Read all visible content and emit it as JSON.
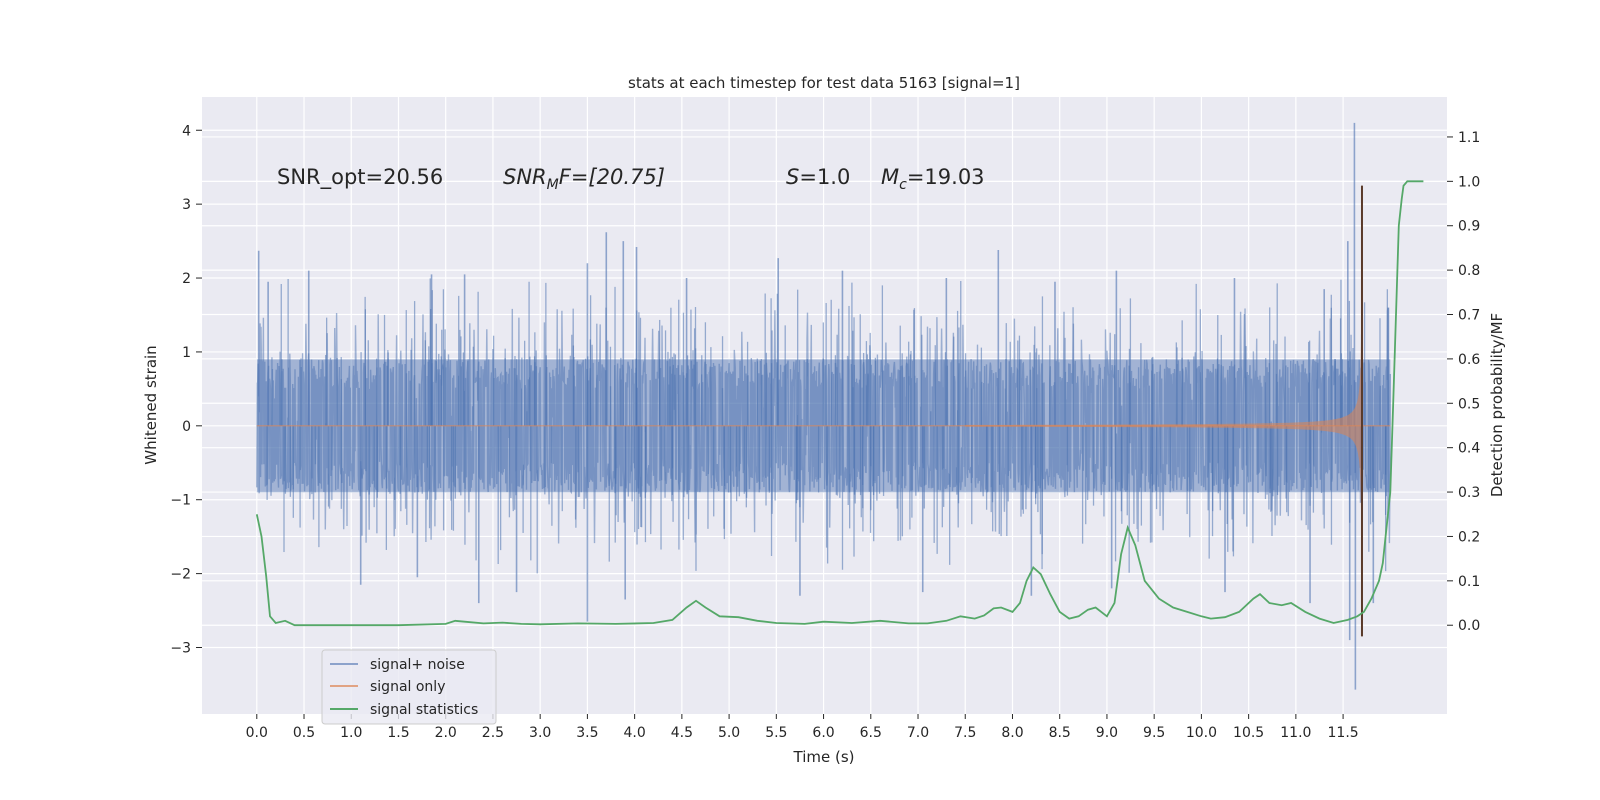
{
  "chart_data": {
    "type": "line",
    "title": "stats at each timestep for test data 5163 [signal=1]",
    "xlabel": "Time (s)",
    "ylabel": "Whitened strain",
    "y2label": "Detection probability/MF",
    "xlim": [
      -0.58,
      12.6
    ],
    "ylim": [
      -3.9,
      4.45
    ],
    "y2lim": [
      -0.2,
      1.19
    ],
    "x_ticks": [
      0.0,
      0.5,
      1.0,
      1.5,
      2.0,
      2.5,
      3.0,
      3.5,
      4.0,
      4.5,
      5.0,
      5.5,
      6.0,
      6.5,
      7.0,
      7.5,
      8.0,
      8.5,
      9.0,
      9.5,
      10.0,
      10.5,
      11.0,
      11.5
    ],
    "x_tick_labels": [
      "0.0",
      "0.5",
      "1.0",
      "1.5",
      "2.0",
      "2.5",
      "3.0",
      "3.5",
      "4.0",
      "4.5",
      "5.0",
      "5.5",
      "6.0",
      "6.5",
      "7.0",
      "7.5",
      "8.0",
      "8.5",
      "9.0",
      "9.5",
      "10.0",
      "10.5",
      "11.0",
      "11.5"
    ],
    "y_ticks": [
      -3,
      -2,
      -1,
      0,
      1,
      2,
      3,
      4
    ],
    "y_tick_labels": [
      "−3",
      "−2",
      "−1",
      "0",
      "1",
      "2",
      "3",
      "4"
    ],
    "y2_ticks": [
      0.0,
      0.1,
      0.2,
      0.3,
      0.4,
      0.5,
      0.6,
      0.7,
      0.8,
      0.9,
      1.0,
      1.1
    ],
    "y2_tick_labels": [
      "0.0",
      "0.1",
      "0.2",
      "0.3",
      "0.4",
      "0.5",
      "0.6",
      "0.7",
      "0.8",
      "0.9",
      "1.0",
      "1.1"
    ],
    "grid": true,
    "legend_position": "lower-left",
    "annotations": {
      "snr_opt": "SNR_opt=20.56",
      "snr_mf_name": "SNR",
      "snr_mf_sub": "M",
      "snr_mf_rest": "F=[20.75]",
      "s_name": "S",
      "s_rest": "=1.0",
      "mc_name": "M",
      "mc_sub": "c",
      "mc_rest": "=19.03"
    },
    "series": [
      {
        "name": "signal+ noise",
        "color": "#4c72b0",
        "opacity": 0.5,
        "axis": "left",
        "t_start": 0.0,
        "t_end": 12.0,
        "band_low": -0.9,
        "band_high": 0.9,
        "peaks": [
          [
            0.02,
            2.37
          ],
          [
            0.12,
            1.95
          ],
          [
            0.55,
            2.1
          ],
          [
            1.85,
            2.05
          ],
          [
            2.2,
            2.05
          ],
          [
            3.5,
            2.2
          ],
          [
            3.7,
            2.62
          ],
          [
            3.88,
            2.5
          ],
          [
            4.02,
            2.42
          ],
          [
            4.55,
            2.0
          ],
          [
            5.52,
            2.27
          ],
          [
            6.2,
            2.1
          ],
          [
            7.3,
            2.0
          ],
          [
            7.85,
            2.38
          ],
          [
            8.45,
            1.95
          ],
          [
            9.1,
            2.1
          ],
          [
            10.35,
            2.0
          ],
          [
            11.3,
            1.85
          ],
          [
            11.62,
            4.1
          ],
          [
            11.55,
            2.5
          ],
          [
            11.98,
            1.6
          ]
        ],
        "troughs": [
          [
            1.1,
            -2.15
          ],
          [
            1.7,
            -2.05
          ],
          [
            2.35,
            -2.4
          ],
          [
            2.75,
            -2.25
          ],
          [
            3.5,
            -2.65
          ],
          [
            3.9,
            -2.35
          ],
          [
            5.75,
            -2.3
          ],
          [
            7.05,
            -2.25
          ],
          [
            8.2,
            -2.3
          ],
          [
            9.05,
            -2.2
          ],
          [
            10.25,
            -2.25
          ],
          [
            11.15,
            -2.4
          ],
          [
            11.57,
            -2.9
          ],
          [
            11.63,
            -3.57
          ],
          [
            11.82,
            -2.4
          ]
        ]
      },
      {
        "name": "signal only",
        "color": "#dd8452",
        "opacity": 0.6,
        "axis": "left",
        "merger_time": 11.7,
        "peak_amplitude": 3.25
      },
      {
        "name": "signal statistics",
        "color": "#55a868",
        "axis": "right",
        "points": [
          [
            0.0,
            0.25
          ],
          [
            0.05,
            0.2
          ],
          [
            0.1,
            0.11
          ],
          [
            0.14,
            0.02
          ],
          [
            0.2,
            0.005
          ],
          [
            0.3,
            0.01
          ],
          [
            0.4,
            0.0
          ],
          [
            0.6,
            0.0
          ],
          [
            1.0,
            0.0
          ],
          [
            1.5,
            0.0
          ],
          [
            2.0,
            0.003
          ],
          [
            2.1,
            0.01
          ],
          [
            2.2,
            0.008
          ],
          [
            2.4,
            0.004
          ],
          [
            2.6,
            0.006
          ],
          [
            2.8,
            0.003
          ],
          [
            3.0,
            0.002
          ],
          [
            3.4,
            0.004
          ],
          [
            3.8,
            0.003
          ],
          [
            4.2,
            0.005
          ],
          [
            4.4,
            0.012
          ],
          [
            4.55,
            0.04
          ],
          [
            4.65,
            0.055
          ],
          [
            4.75,
            0.04
          ],
          [
            4.9,
            0.02
          ],
          [
            5.1,
            0.018
          ],
          [
            5.3,
            0.01
          ],
          [
            5.5,
            0.005
          ],
          [
            5.8,
            0.003
          ],
          [
            6.0,
            0.008
          ],
          [
            6.3,
            0.005
          ],
          [
            6.6,
            0.01
          ],
          [
            6.9,
            0.004
          ],
          [
            7.1,
            0.004
          ],
          [
            7.3,
            0.01
          ],
          [
            7.45,
            0.02
          ],
          [
            7.6,
            0.015
          ],
          [
            7.7,
            0.022
          ],
          [
            7.8,
            0.038
          ],
          [
            7.88,
            0.04
          ],
          [
            8.0,
            0.03
          ],
          [
            8.08,
            0.05
          ],
          [
            8.15,
            0.1
          ],
          [
            8.22,
            0.13
          ],
          [
            8.3,
            0.115
          ],
          [
            8.4,
            0.07
          ],
          [
            8.5,
            0.03
          ],
          [
            8.6,
            0.015
          ],
          [
            8.7,
            0.02
          ],
          [
            8.8,
            0.035
          ],
          [
            8.88,
            0.04
          ],
          [
            9.0,
            0.02
          ],
          [
            9.08,
            0.05
          ],
          [
            9.15,
            0.16
          ],
          [
            9.22,
            0.22
          ],
          [
            9.3,
            0.18
          ],
          [
            9.4,
            0.1
          ],
          [
            9.55,
            0.06
          ],
          [
            9.7,
            0.04
          ],
          [
            9.85,
            0.03
          ],
          [
            10.0,
            0.02
          ],
          [
            10.1,
            0.015
          ],
          [
            10.25,
            0.018
          ],
          [
            10.4,
            0.03
          ],
          [
            10.55,
            0.06
          ],
          [
            10.62,
            0.07
          ],
          [
            10.72,
            0.05
          ],
          [
            10.85,
            0.045
          ],
          [
            10.95,
            0.05
          ],
          [
            11.1,
            0.03
          ],
          [
            11.25,
            0.015
          ],
          [
            11.4,
            0.005
          ],
          [
            11.55,
            0.012
          ],
          [
            11.65,
            0.02
          ],
          [
            11.72,
            0.03
          ],
          [
            11.8,
            0.06
          ],
          [
            11.88,
            0.1
          ],
          [
            11.92,
            0.14
          ],
          [
            11.95,
            0.2
          ],
          [
            12.0,
            0.3
          ],
          [
            12.03,
            0.5
          ],
          [
            12.06,
            0.7
          ],
          [
            12.09,
            0.9
          ],
          [
            12.12,
            0.96
          ],
          [
            12.14,
            0.99
          ],
          [
            12.18,
            1.0
          ],
          [
            12.26,
            1.0
          ],
          [
            12.35,
            1.0
          ]
        ]
      }
    ]
  }
}
